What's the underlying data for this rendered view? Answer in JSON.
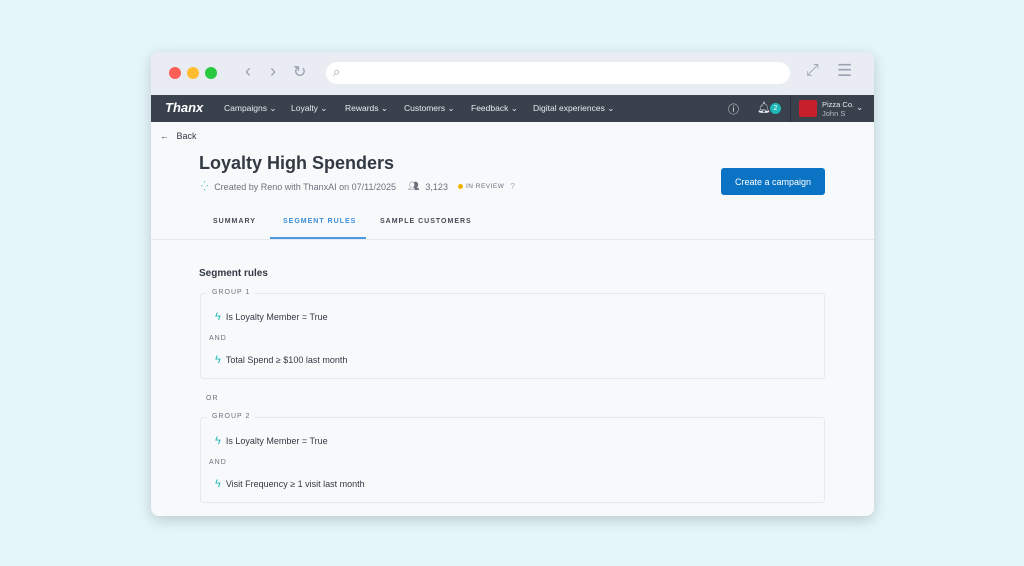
{
  "nav": {
    "logo": "Thanx",
    "items": [
      "Campaigns",
      "Loyalty",
      "Rewards",
      "Customers",
      "Feedback",
      "Digital experiences"
    ],
    "notifications": "2",
    "org": "Pizza Co.",
    "user": "John S"
  },
  "page": {
    "back": "Back",
    "title": "Loyalty High Spenders",
    "created": "Created by Reno with ThanxAI on 07/11/2025",
    "count": "3,123",
    "status": "IN REVIEW",
    "status_color": "#f0b400",
    "cta": "Create a campaign"
  },
  "tabs": [
    {
      "label": "SUMMARY"
    },
    {
      "label": "SEGMENT RULES",
      "active": true
    },
    {
      "label": "SAMPLE CUSTOMERS"
    }
  ],
  "rules": {
    "heading": "Segment rules",
    "or": "OR",
    "groups": [
      {
        "label": "GROUP 1",
        "conj": "AND",
        "rules": [
          "Is Loyalty Member = True",
          "Total Spend ≥ $100 last month"
        ]
      },
      {
        "label": "GROUP 2",
        "conj": "AND",
        "rules": [
          "Is Loyalty Member = True",
          "Visit Frequency ≥ 1 visit last month"
        ]
      }
    ]
  }
}
